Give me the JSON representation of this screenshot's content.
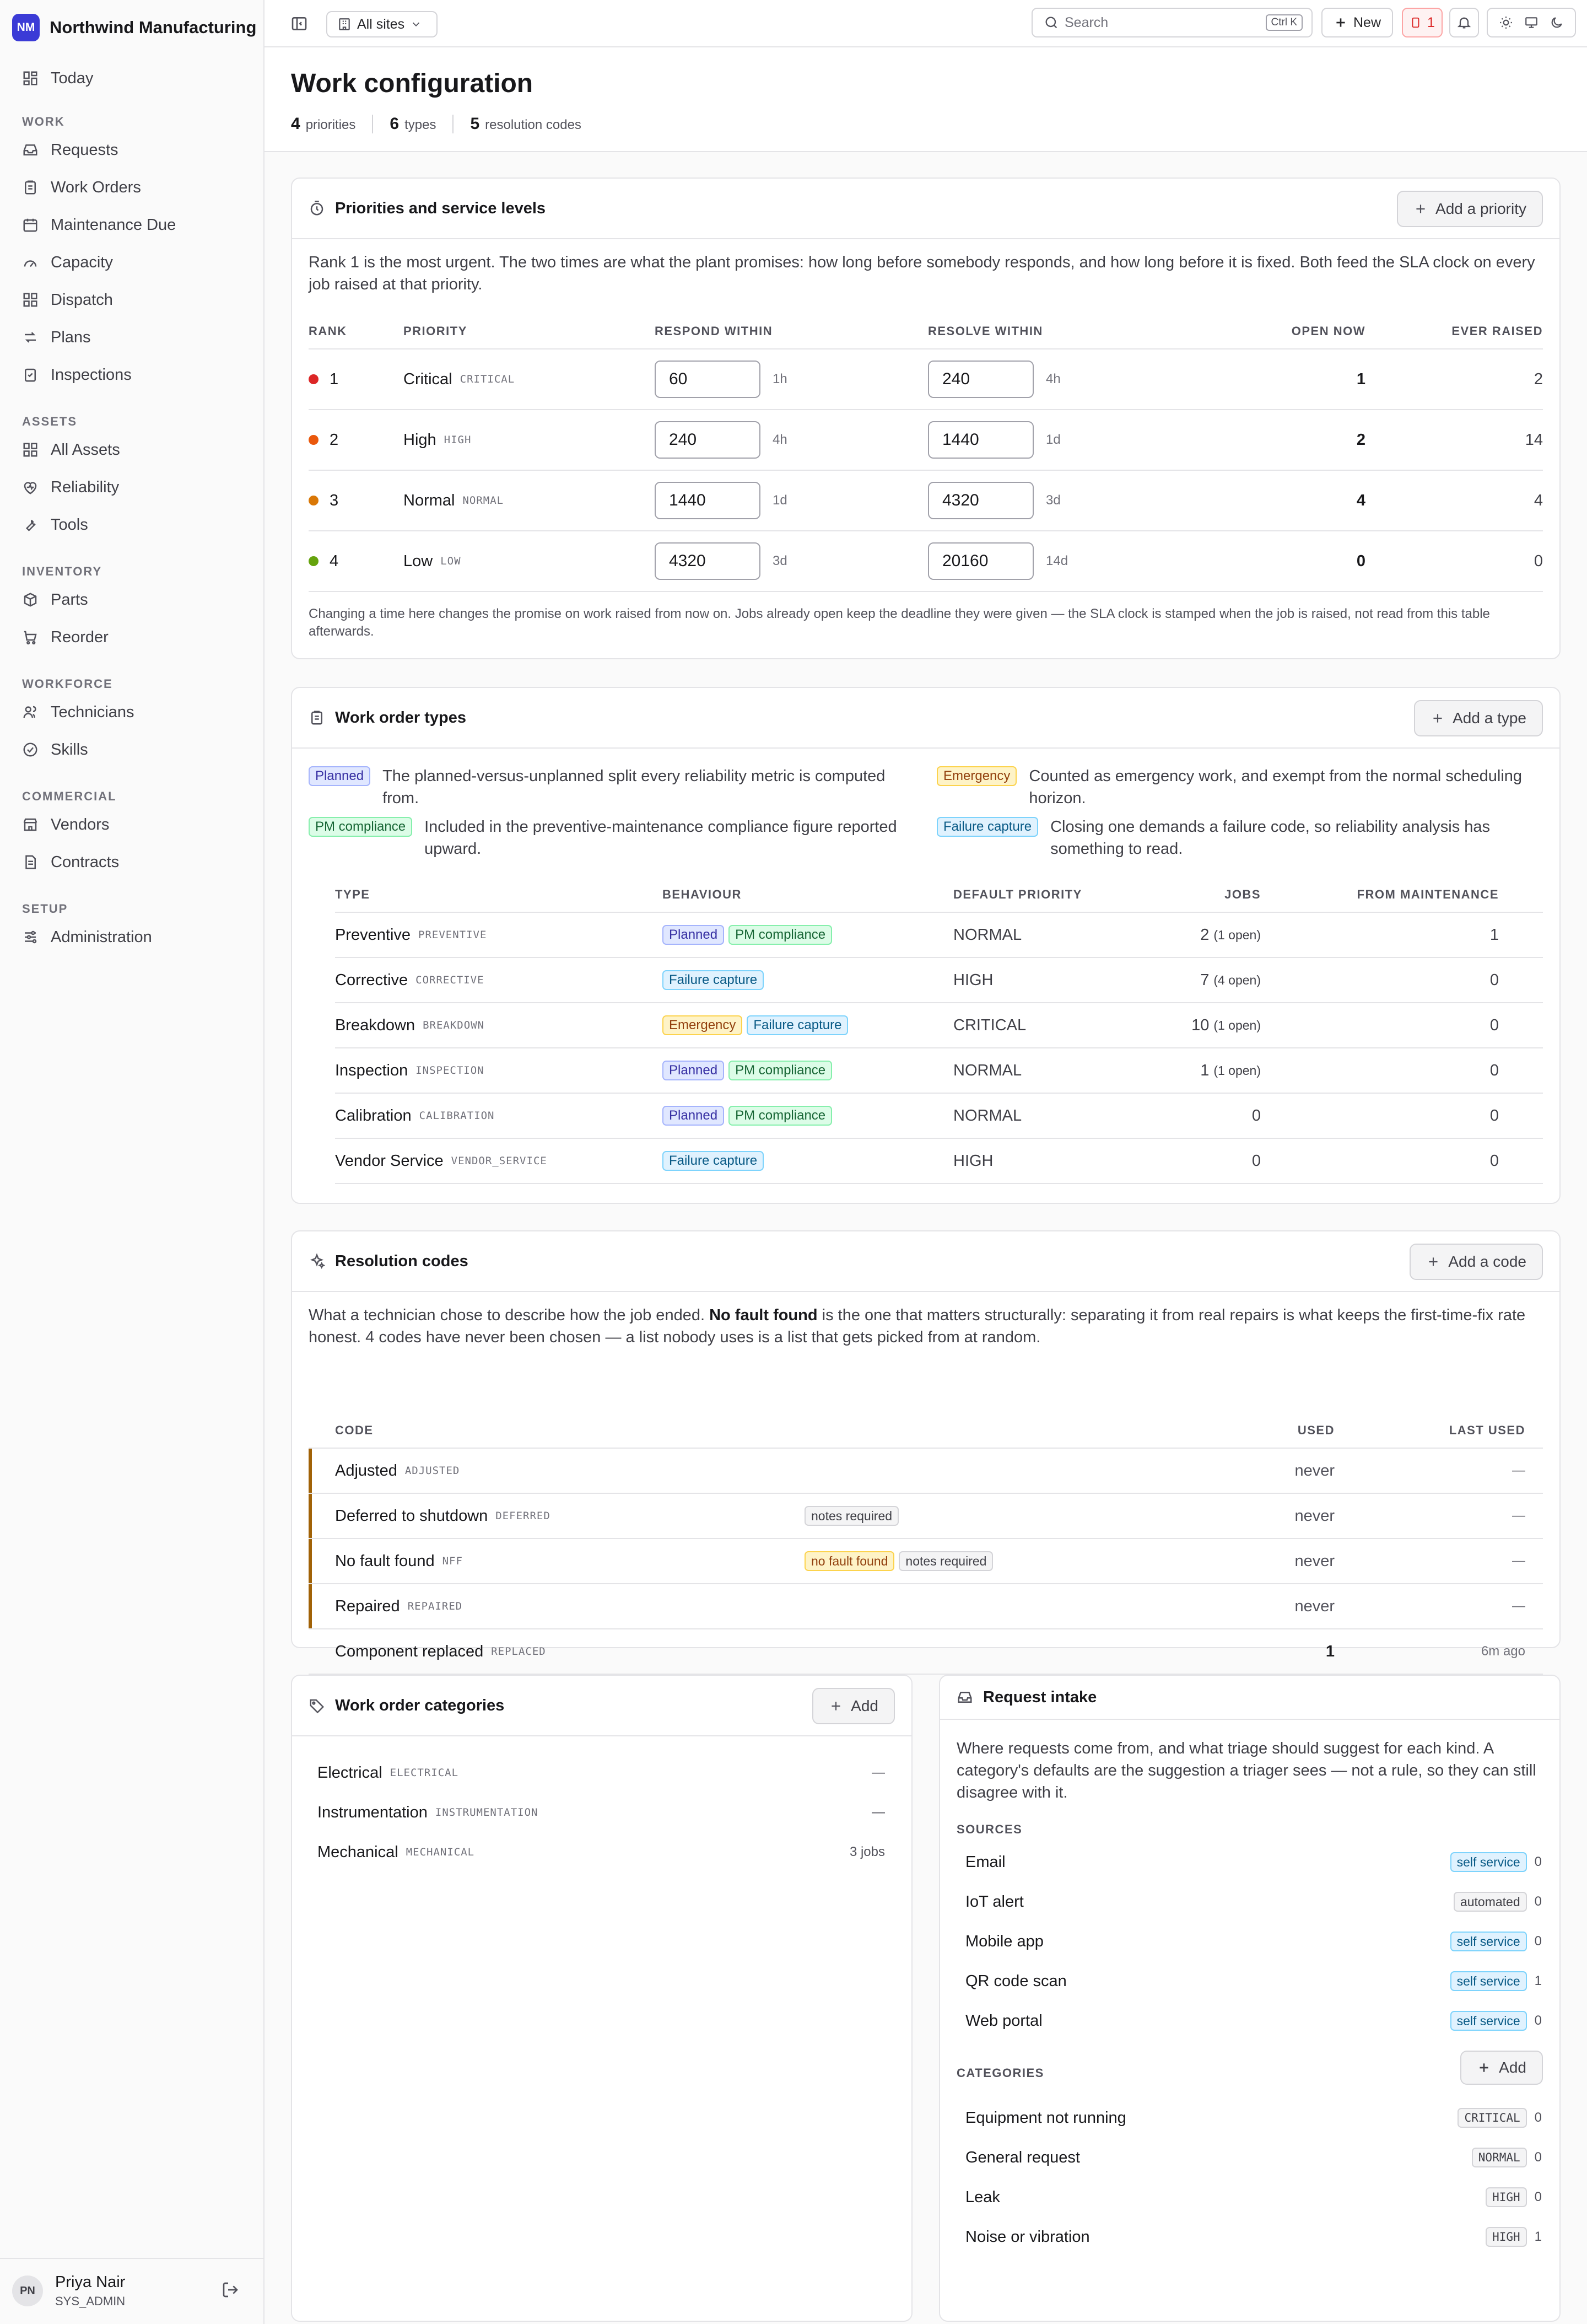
{
  "app": {
    "org_initials": "NM",
    "org_name": "Northwind Manufacturing"
  },
  "nav": {
    "today": "Today",
    "sections": [
      {
        "heading": "WORK",
        "items": [
          "Requests",
          "Work Orders",
          "Maintenance Due",
          "Capacity",
          "Dispatch",
          "Plans",
          "Inspections"
        ]
      },
      {
        "heading": "ASSETS",
        "items": [
          "All Assets",
          "Reliability",
          "Tools"
        ]
      },
      {
        "heading": "INVENTORY",
        "items": [
          "Parts",
          "Reorder"
        ]
      },
      {
        "heading": "WORKFORCE",
        "items": [
          "Technicians",
          "Skills"
        ]
      },
      {
        "heading": "COMMERCIAL",
        "items": [
          "Vendors",
          "Contracts"
        ]
      },
      {
        "heading": "SETUP",
        "items": [
          "Administration"
        ]
      }
    ]
  },
  "user": {
    "initials": "PN",
    "name": "Priya Nair",
    "role": "SYS_ADMIN"
  },
  "topbar": {
    "site_selector": "All sites",
    "search_placeholder": "Search",
    "search_shortcut": "Ctrl K",
    "new_label": "New",
    "alert_count": "1"
  },
  "page": {
    "title": "Work configuration",
    "stats": [
      {
        "value": "4",
        "label": "priorities"
      },
      {
        "value": "6",
        "label": "types"
      },
      {
        "value": "5",
        "label": "resolution codes"
      }
    ]
  },
  "priorities": {
    "title": "Priorities and service levels",
    "add_label": "Add a priority",
    "description": "Rank 1 is the most urgent. The two times are what the plant promises: how long before somebody responds, and how long before it is fixed. Both feed the SLA clock on every job raised at that priority.",
    "columns": [
      "RANK",
      "PRIORITY",
      "RESPOND WITHIN",
      "RESOLVE WITHIN",
      "OPEN NOW",
      "EVER RAISED"
    ],
    "rows": [
      {
        "rank": "1",
        "color": "#dc2626",
        "name": "Critical",
        "code": "CRITICAL",
        "respond": "60",
        "respond_hint": "1h",
        "resolve": "240",
        "resolve_hint": "4h",
        "open": "1",
        "raised": "2"
      },
      {
        "rank": "2",
        "color": "#ea580c",
        "name": "High",
        "code": "HIGH",
        "respond": "240",
        "respond_hint": "4h",
        "resolve": "1440",
        "resolve_hint": "1d",
        "open": "2",
        "raised": "14"
      },
      {
        "rank": "3",
        "color": "#d97706",
        "name": "Normal",
        "code": "NORMAL",
        "respond": "1440",
        "respond_hint": "1d",
        "resolve": "4320",
        "resolve_hint": "3d",
        "open": "4",
        "raised": "4"
      },
      {
        "rank": "4",
        "color": "#65a30d",
        "name": "Low",
        "code": "LOW",
        "respond": "4320",
        "respond_hint": "3d",
        "resolve": "20160",
        "resolve_hint": "14d",
        "open": "0",
        "raised": "0"
      }
    ],
    "note": "Changing a time here changes the promise on work raised from now on. Jobs already open keep the deadline they were given — the SLA clock is stamped when the job is raised, not read from this table afterwards."
  },
  "types": {
    "title": "Work order types",
    "add_label": "Add a type",
    "legend": [
      {
        "tag": "Planned",
        "style": "planned",
        "text": "The planned-versus-unplanned split every reliability metric is computed from."
      },
      {
        "tag": "Emergency",
        "style": "emer",
        "text": "Counted as emergency work, and exempt from the normal scheduling horizon."
      },
      {
        "tag": "PM compliance",
        "style": "pm",
        "text": "Included in the preventive-maintenance compliance figure reported upward."
      },
      {
        "tag": "Failure capture",
        "style": "fail",
        "text": "Closing one demands a failure code, so reliability analysis has something to read."
      }
    ],
    "columns": [
      "TYPE",
      "BEHAVIOUR",
      "DEFAULT PRIORITY",
      "JOBS",
      "FROM MAINTENANCE"
    ],
    "rows": [
      {
        "name": "Preventive",
        "code": "PREVENTIVE",
        "tags": [
          {
            "label": "Planned",
            "style": "planned"
          },
          {
            "label": "PM compliance",
            "style": "pm"
          }
        ],
        "priority": "NORMAL",
        "jobs": "2",
        "open": "(1 open)",
        "from": "1"
      },
      {
        "name": "Corrective",
        "code": "CORRECTIVE",
        "tags": [
          {
            "label": "Failure capture",
            "style": "fail"
          }
        ],
        "priority": "HIGH",
        "jobs": "7",
        "open": "(4 open)",
        "from": "0"
      },
      {
        "name": "Breakdown",
        "code": "BREAKDOWN",
        "tags": [
          {
            "label": "Emergency",
            "style": "emer"
          },
          {
            "label": "Failure capture",
            "style": "fail"
          }
        ],
        "priority": "CRITICAL",
        "jobs": "10",
        "open": "(1 open)",
        "from": "0"
      },
      {
        "name": "Inspection",
        "code": "INSPECTION",
        "tags": [
          {
            "label": "Planned",
            "style": "planned"
          },
          {
            "label": "PM compliance",
            "style": "pm"
          }
        ],
        "priority": "NORMAL",
        "jobs": "1",
        "open": "(1 open)",
        "from": "0"
      },
      {
        "name": "Calibration",
        "code": "CALIBRATION",
        "tags": [
          {
            "label": "Planned",
            "style": "planned"
          },
          {
            "label": "PM compliance",
            "style": "pm"
          }
        ],
        "priority": "NORMAL",
        "jobs": "0",
        "open": "",
        "from": "0"
      },
      {
        "name": "Vendor Service",
        "code": "VENDOR_SERVICE",
        "tags": [
          {
            "label": "Failure capture",
            "style": "fail"
          }
        ],
        "priority": "HIGH",
        "jobs": "0",
        "open": "",
        "from": "0"
      }
    ]
  },
  "resolution": {
    "title": "Resolution codes",
    "add_label": "Add a code",
    "desc_a": "What a technician chose to describe how the job ended.",
    "desc_b": "No fault found",
    "desc_c": "is the one that matters structurally: separating it from real repairs is what keeps the first-time-fix rate honest. 4 codes have never been chosen — a list nobody uses is a list that gets picked from at random.",
    "columns": [
      "CODE",
      "USED",
      "LAST USED"
    ],
    "rows": [
      {
        "name": "Adjusted",
        "code": "ADJUSTED",
        "tags": [],
        "used": "never",
        "last": "—",
        "accent": true
      },
      {
        "name": "Deferred to shutdown",
        "code": "DEFERRED",
        "tags": [
          {
            "label": "notes required",
            "style": "gray"
          }
        ],
        "used": "never",
        "last": "—",
        "accent": true
      },
      {
        "name": "No fault found",
        "code": "NFF",
        "tags": [
          {
            "label": "no fault found",
            "style": "nff"
          },
          {
            "label": "notes required",
            "style": "gray"
          }
        ],
        "used": "never",
        "last": "—",
        "accent": true
      },
      {
        "name": "Repaired",
        "code": "REPAIRED",
        "tags": [],
        "used": "never",
        "last": "—",
        "accent": true
      },
      {
        "name": "Component replaced",
        "code": "REPLACED",
        "tags": [],
        "used": "1",
        "last": "6m ago",
        "accent": false
      }
    ]
  },
  "categories": {
    "title": "Work order categories",
    "add_label": "Add",
    "rows": [
      {
        "name": "Electrical",
        "code": "ELECTRICAL",
        "count": "—"
      },
      {
        "name": "Instrumentation",
        "code": "INSTRUMENTATION",
        "count": "—"
      },
      {
        "name": "Mechanical",
        "code": "MECHANICAL",
        "count": "3 jobs"
      }
    ]
  },
  "intake": {
    "title": "Request intake",
    "description": "Where requests come from, and what triage should suggest for each kind. A category's defaults are the suggestion a triager sees — not a rule, so they can still disagree with it.",
    "sources_heading": "SOURCES",
    "sources": [
      {
        "name": "Email",
        "tag": "self service",
        "style": "ss",
        "count": "0"
      },
      {
        "name": "IoT alert",
        "tag": "automated",
        "style": "gray",
        "count": "0"
      },
      {
        "name": "Mobile app",
        "tag": "self service",
        "style": "ss",
        "count": "0"
      },
      {
        "name": "QR code scan",
        "tag": "self service",
        "style": "ss",
        "count": "1"
      },
      {
        "name": "Web portal",
        "tag": "self service",
        "style": "ss",
        "count": "0"
      }
    ],
    "categories_heading": "CATEGORIES",
    "add_label": "Add",
    "categories": [
      {
        "name": "Equipment not running",
        "tag": "CRITICAL",
        "count": "0"
      },
      {
        "name": "General request",
        "tag": "NORMAL",
        "count": "0"
      },
      {
        "name": "Leak",
        "tag": "HIGH",
        "count": "0"
      },
      {
        "name": "Noise or vibration",
        "tag": "HIGH",
        "count": "1"
      }
    ]
  }
}
